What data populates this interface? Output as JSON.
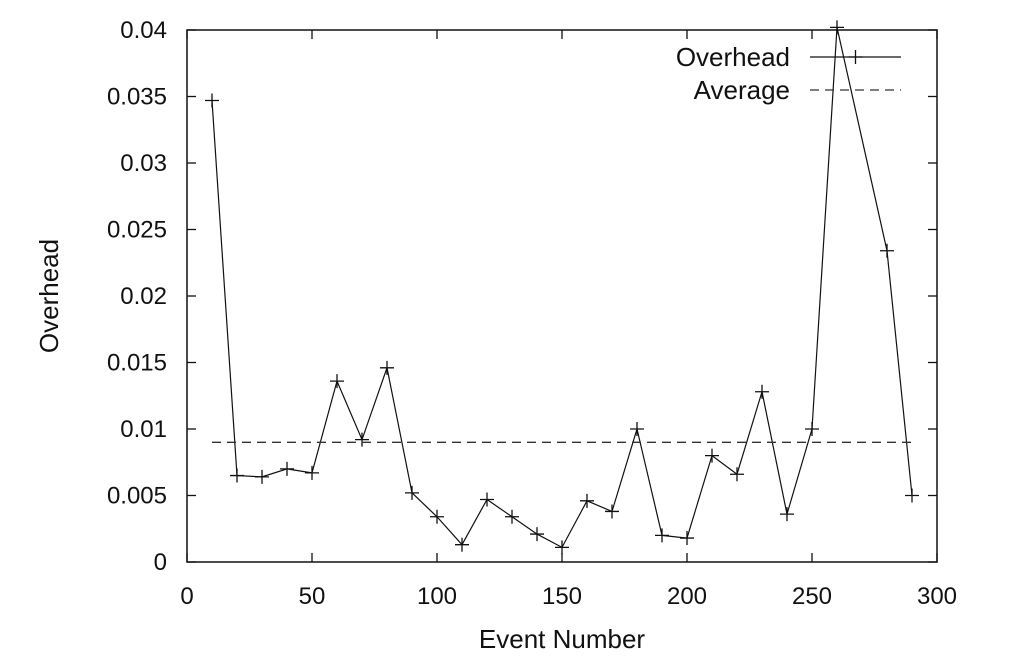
{
  "chart_data": {
    "type": "line",
    "title": "",
    "xlabel": "Event Number",
    "ylabel": "Overhead",
    "xlim": [
      0,
      300
    ],
    "ylim": [
      0,
      0.04
    ],
    "xticks": [
      0,
      50,
      100,
      150,
      200,
      250,
      300
    ],
    "xtick_labels": [
      "0",
      "50",
      "100",
      "150",
      "200",
      "250",
      "300"
    ],
    "yticks": [
      0,
      0.005,
      0.01,
      0.015,
      0.02,
      0.025,
      0.03,
      0.035,
      0.04
    ],
    "ytick_labels": [
      "0",
      "0.005",
      "0.01",
      "0.015",
      "0.02",
      "0.025",
      "0.03",
      "0.035",
      "0.04"
    ],
    "grid": false,
    "legend_position": "top-right",
    "series": [
      {
        "name": "Overhead",
        "style": "solid-with-plus-markers",
        "color": "#111111",
        "x": [
          10,
          20,
          30,
          40,
          50,
          60,
          70,
          80,
          90,
          100,
          110,
          120,
          130,
          140,
          150,
          160,
          170,
          180,
          190,
          200,
          210,
          220,
          230,
          240,
          250,
          260,
          280,
          290
        ],
        "y": [
          0.0347,
          0.0065,
          0.0064,
          0.007,
          0.0067,
          0.0136,
          0.0092,
          0.0146,
          0.0052,
          0.0034,
          0.0013,
          0.0047,
          0.0034,
          0.0021,
          0.0011,
          0.0046,
          0.0038,
          0.01,
          0.002,
          0.0018,
          0.008,
          0.0066,
          0.0128,
          0.0036,
          0.01,
          0.0402,
          0.0234,
          0.005
        ]
      },
      {
        "name": "Average",
        "style": "dashed",
        "color": "#333333",
        "x": [
          10,
          290
        ],
        "y": [
          0.009,
          0.009
        ]
      }
    ]
  }
}
